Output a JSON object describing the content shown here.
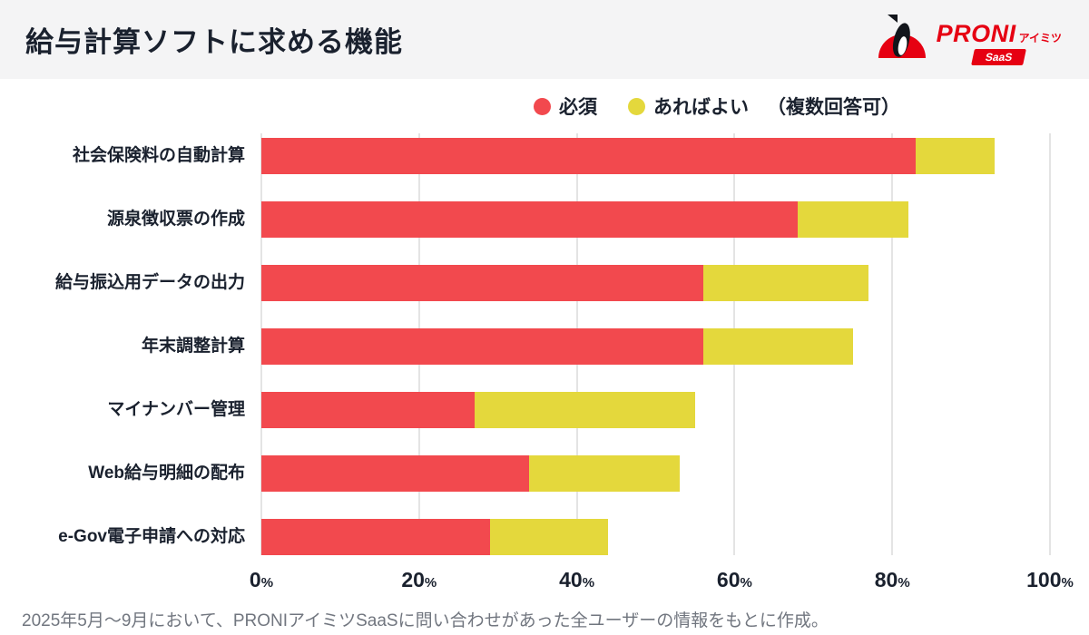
{
  "header": {
    "title": "給与計算ソフトに求める機能",
    "logo": {
      "brand": "PRONI",
      "sub": "アイミツ",
      "badge": "SaaS",
      "brand_color": "#e60012"
    }
  },
  "legend": {
    "items": [
      {
        "label": "必須",
        "color": "#f2494e"
      },
      {
        "label": "あればよい",
        "color": "#e4d83c"
      }
    ],
    "note": "（複数回答可）"
  },
  "chart_data": {
    "type": "bar",
    "orientation": "horizontal",
    "stacked": true,
    "title": "給与計算ソフトに求める機能",
    "categories": [
      "社会保険料の自動計算",
      "源泉徴収票の作成",
      "給与振込用データの出力",
      "年末調整計算",
      "マイナンバー管理",
      "Web給与明細の配布",
      "e-Gov電子申請への対応"
    ],
    "series": [
      {
        "name": "必須",
        "color": "#f2494e",
        "values": [
          83,
          68,
          56,
          56,
          27,
          34,
          29
        ]
      },
      {
        "name": "あればよい",
        "color": "#e4d83c",
        "values": [
          10,
          14,
          21,
          19,
          28,
          19,
          15
        ]
      }
    ],
    "xlim": [
      0,
      100
    ],
    "ticks": [
      0,
      20,
      40,
      60,
      80,
      100
    ],
    "unit": "%",
    "grid": "vertical",
    "legend_position": "top",
    "colors": {
      "grid": "#e4e4e4",
      "text": "#1a212e",
      "header_bg": "#f4f4f5"
    }
  },
  "footer": {
    "note": "2025年5月〜9月において、PRONIアイミツSaaSに問い合わせがあった全ユーザーの情報をもとに作成。"
  }
}
